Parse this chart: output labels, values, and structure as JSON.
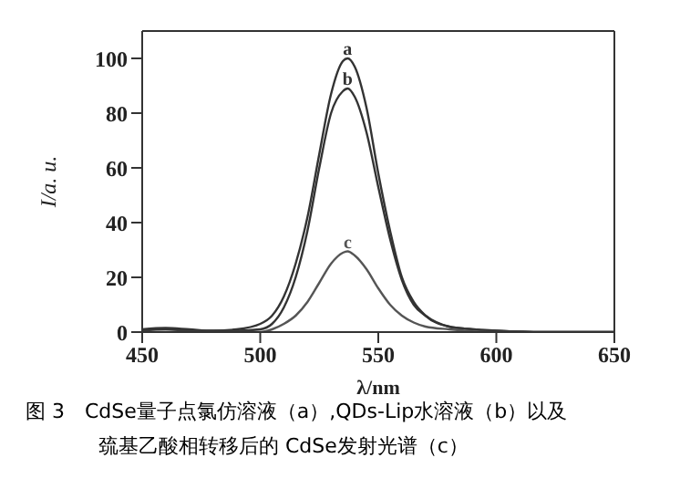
{
  "chart_data": {
    "type": "line",
    "xlabel": "λ/nm",
    "ylabel": "I/a. u.",
    "xlim": [
      450,
      650
    ],
    "xticks": [
      450,
      500,
      550,
      600,
      650
    ],
    "ylim": [
      0,
      110
    ],
    "yticks": [
      0,
      20,
      40,
      60,
      80,
      100
    ],
    "grid": false,
    "legend": false,
    "marker": "none",
    "line_style": "solid",
    "series": [
      {
        "name": "a",
        "color": "#333333",
        "x": [
          450,
          460,
          470,
          480,
          490,
          500,
          505,
          510,
          515,
          520,
          525,
          530,
          535,
          537,
          540,
          545,
          550,
          555,
          560,
          565,
          570,
          580,
          590,
          600,
          620,
          650
        ],
        "values": [
          1,
          1.5,
          1,
          0.5,
          1,
          3,
          6,
          13,
          25,
          42,
          65,
          87,
          99,
          100,
          97,
          82,
          58,
          37,
          20,
          11,
          6,
          2,
          1,
          0.5,
          0,
          0
        ]
      },
      {
        "name": "b",
        "color": "#333333",
        "x": [
          450,
          460,
          470,
          480,
          490,
          500,
          505,
          510,
          515,
          520,
          525,
          530,
          535,
          537,
          540,
          545,
          550,
          555,
          560,
          565,
          570,
          580,
          590,
          600,
          620,
          650
        ],
        "values": [
          0.5,
          1,
          0.5,
          0.5,
          0.5,
          1,
          3,
          9,
          20,
          37,
          60,
          80,
          88,
          89,
          86,
          73,
          53,
          34,
          19,
          10,
          6,
          2,
          1,
          0.5,
          0,
          0
        ]
      },
      {
        "name": "c",
        "color": "#555555",
        "x": [
          450,
          500,
          505,
          510,
          515,
          520,
          525,
          530,
          535,
          537,
          540,
          545,
          550,
          555,
          560,
          565,
          570,
          580,
          600,
          650
        ],
        "values": [
          0,
          0,
          1,
          3,
          6,
          11,
          18,
          25,
          29,
          29.5,
          28,
          23,
          16,
          10,
          6,
          3.5,
          2,
          1,
          0,
          0
        ]
      }
    ],
    "annotations": [
      "图 3　CdSe量子点氯仿溶液（a）,QDs-Lip水溶液（b）以及",
      "巯基乙酸相转移后的 CdSe发射光谱（c）"
    ]
  }
}
